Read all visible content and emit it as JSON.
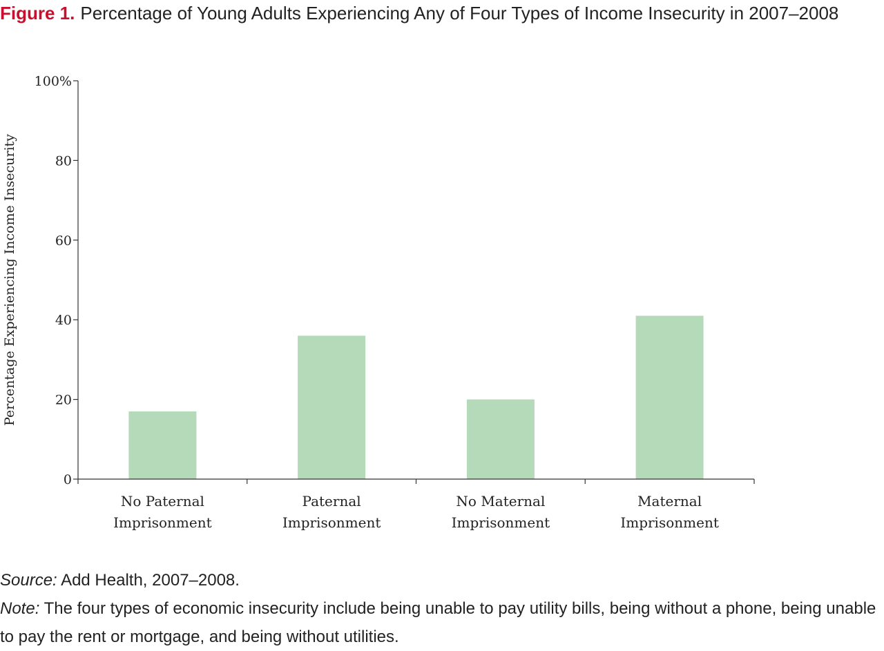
{
  "figure": {
    "label": "Figure 1.",
    "title": "Percentage of Young Adults Experiencing Any of Four Types of Income Insecurity in 2007–2008"
  },
  "chart_data": {
    "type": "bar",
    "categories": [
      [
        "No Paternal",
        "Imprisonment"
      ],
      [
        "Paternal",
        "Imprisonment"
      ],
      [
        "No Maternal",
        "Imprisonment"
      ],
      [
        "Maternal",
        "Imprisonment"
      ]
    ],
    "values": [
      17,
      36,
      20,
      41
    ],
    "ylabel": "Percentage Experiencing Income Insecurity",
    "ylim": [
      0,
      100
    ],
    "yticks": [
      "0",
      "20",
      "40",
      "60",
      "80",
      "100%"
    ],
    "bar_color": "#b5dab9",
    "axis_color": "#333333",
    "grid": false,
    "legend": "none"
  },
  "footer": {
    "source_label": "Source:",
    "source_text": "Add Health, 2007–2008.",
    "note_label": "Note:",
    "note_text": "The four types of economic insecurity include being unable to pay utility bills, being without a phone, being unable to pay the rent or mortgage, and being without utilities."
  }
}
